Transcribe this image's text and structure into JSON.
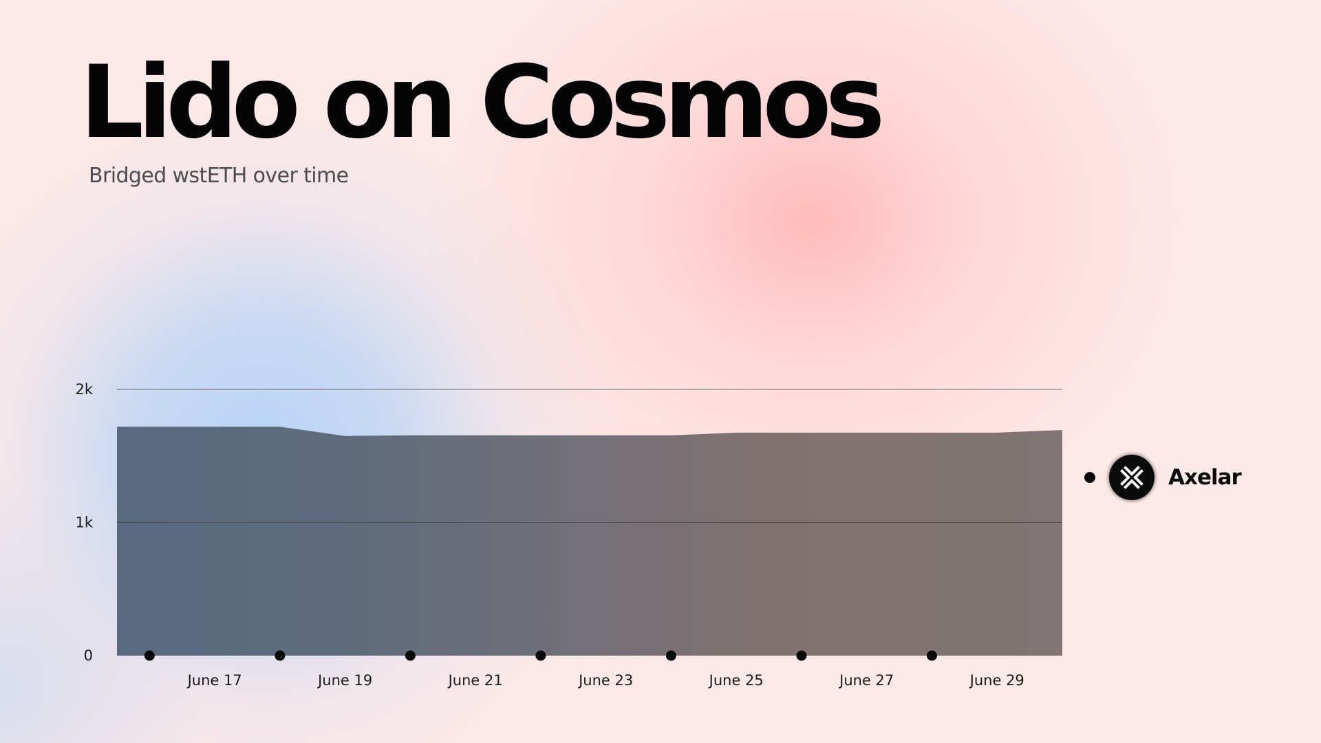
{
  "title": "Lido on Cosmos",
  "subtitle": "Bridged wstETH over time",
  "colors": {
    "area_fill_left": "#5a6a7e",
    "area_fill_right": "#80716f",
    "gridline": "#4a4a4a",
    "marker": "#0a0a0a",
    "text": "#050505"
  },
  "chart_data": {
    "type": "area",
    "x_tick_labels": [
      "June 17",
      "June 19",
      "June 21",
      "June 23",
      "June 25",
      "June 27",
      "June 29"
    ],
    "y_tick_labels": [
      "0",
      "1k",
      "2k"
    ],
    "ylim": [
      0,
      2000
    ],
    "xlim": [
      "June 15 12:00",
      "June 30"
    ],
    "grid": true,
    "legend_position": "right",
    "series": [
      {
        "name": "Axelar",
        "x": [
          "June 15",
          "June 16",
          "June 17",
          "June 18",
          "June 19",
          "June 20",
          "June 21",
          "June 22",
          "June 23",
          "June 24",
          "June 25",
          "June 26",
          "June 27",
          "June 28",
          "June 29",
          "June 30"
        ],
        "values": [
          1720,
          1720,
          1720,
          1720,
          1650,
          1655,
          1655,
          1655,
          1655,
          1655,
          1675,
          1675,
          1675,
          1675,
          1675,
          1695
        ]
      }
    ],
    "event_markers_x": [
      "June 16",
      "June 18",
      "June 20",
      "June 22",
      "June 24",
      "June 26",
      "June 28"
    ]
  },
  "legend": {
    "items": [
      {
        "label": "Axelar",
        "icon": "axelar-logo-icon"
      }
    ]
  }
}
